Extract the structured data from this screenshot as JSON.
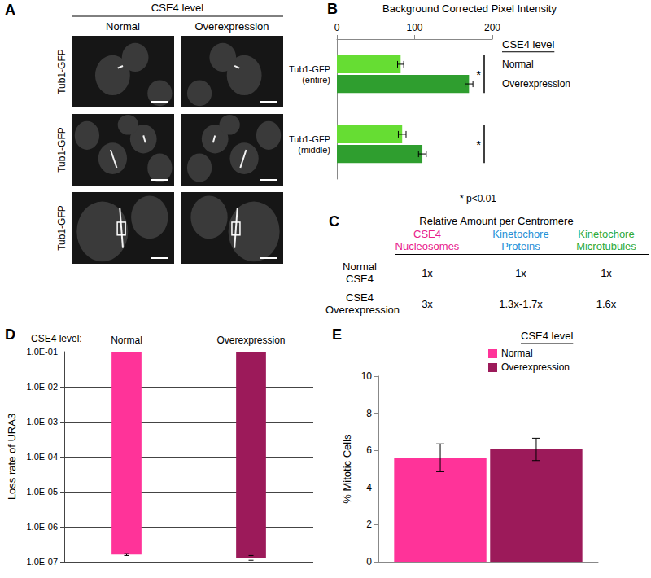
{
  "panel_a": {
    "label": "A",
    "header": "CSE4 level",
    "columns": [
      "Normal",
      "Overexpression"
    ],
    "rows": [
      "Tub1-GFP",
      "Tub1-GFP",
      "Tub1-GFP"
    ]
  },
  "panel_c": {
    "label": "C",
    "title": "Relative Amount per Centromere",
    "columns": [
      {
        "text": "CSE4 Nucleosomes",
        "color": "#e8208a"
      },
      {
        "text": "Kinetochore Proteins",
        "color": "#1f8fd6"
      },
      {
        "text": "Kinetochore Microtubules",
        "color": "#2eaa3a"
      }
    ],
    "rows": [
      {
        "label": "Normal CSE4",
        "cells": [
          "1x",
          "1x",
          "1x"
        ]
      },
      {
        "label": "CSE4 Overexpression",
        "cells": [
          "3x",
          "1.3x-1.7x",
          "1.6x"
        ]
      }
    ]
  },
  "chart_data": [
    {
      "label": "B",
      "type": "bar",
      "orientation": "horizontal",
      "title": "Background Corrected Pixel Intensity",
      "categories": [
        "Tub1-GFP (entire)",
        "Tub1-GFP (middle)"
      ],
      "series": [
        {
          "name": "Normal",
          "color": "#66dd33",
          "values": [
            82,
            84
          ],
          "errors": [
            4,
            5
          ]
        },
        {
          "name": "Overexpression",
          "color": "#2f9e2f",
          "values": [
            170,
            110
          ],
          "errors": [
            5,
            5
          ]
        }
      ],
      "xlim": [
        0,
        200
      ],
      "xticks": [
        0,
        100,
        200
      ],
      "grid": false,
      "legend": "right",
      "legend_title": "CSE4 level",
      "annotations": [
        {
          "category": "Tub1-GFP (entire)",
          "text": "*"
        },
        {
          "category": "Tub1-GFP (middle)",
          "text": "*"
        }
      ],
      "note": "* p<0.01"
    },
    {
      "label": "D",
      "type": "bar",
      "log": "y",
      "category_title": "CSE4 level:",
      "categories": [
        "Normal",
        "Overexpression"
      ],
      "values": [
        1.6e-07,
        1.3e-07
      ],
      "errors": [
        1e-08,
        2e-08
      ],
      "colors": [
        "#ff3399",
        "#9c1a5a"
      ],
      "ylabel": "Loss rate of URA3",
      "ylim": [
        1e-07,
        0.1
      ],
      "yticks": [
        {
          "value": 1e-07,
          "label": "1.0E-07"
        },
        {
          "value": 1e-06,
          "label": "1.0E-06"
        },
        {
          "value": 1e-05,
          "label": "1.0E-05"
        },
        {
          "value": 0.0001,
          "label": "1.0E-04"
        },
        {
          "value": 0.001,
          "label": "1.0E-03"
        },
        {
          "value": 0.01,
          "label": "1.0E-02"
        },
        {
          "value": 0.1,
          "label": "1.0E-01"
        }
      ],
      "grid": true
    },
    {
      "label": "E",
      "type": "bar",
      "ylabel": "% Mitotic Cells",
      "categories": [
        null
      ],
      "series": [
        {
          "name": "Normal",
          "color": "#ff3399",
          "values": [
            5.6
          ],
          "errors": [
            0.75
          ]
        },
        {
          "name": "Overexpression",
          "color": "#9c1a5a",
          "values": [
            6.05
          ],
          "errors": [
            0.6
          ]
        }
      ],
      "ylim": [
        0,
        10
      ],
      "yticks": [
        0,
        2,
        4,
        6,
        8,
        10
      ],
      "grid": false,
      "legend": "top right",
      "legend_title": "CSE4 level"
    }
  ]
}
